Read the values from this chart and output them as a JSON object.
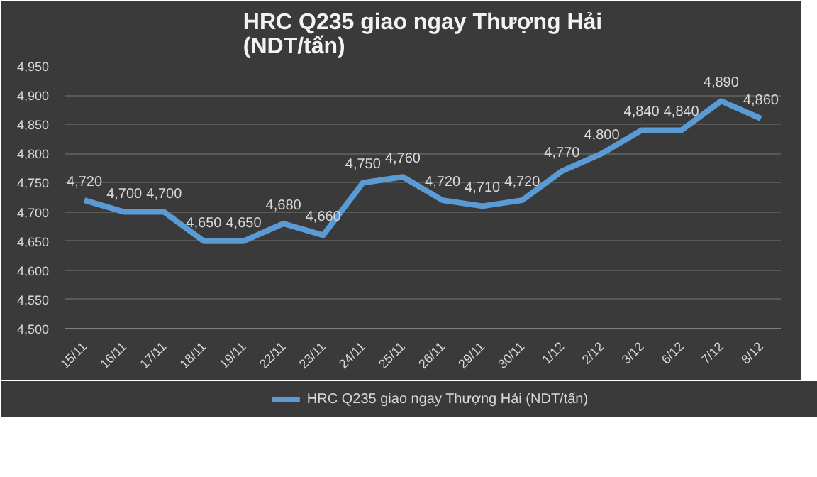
{
  "chart_data": {
    "type": "line",
    "title": "HRC Q235 giao ngay Thượng Hải\n(NDT/tấn)",
    "categories": [
      "15/11",
      "16/11",
      "17/11",
      "18/11",
      "19/11",
      "22/11",
      "23/11",
      "24/11",
      "25/11",
      "26/11",
      "29/11",
      "30/11",
      "1/12",
      "2/12",
      "3/12",
      "6/12",
      "7/12",
      "8/12"
    ],
    "series": [
      {
        "name": "HRC Q235 giao ngay Thượng Hải (NDT/tấn)",
        "color": "#5b9bd5",
        "values": [
          4720,
          4700,
          4700,
          4650,
          4650,
          4680,
          4660,
          4750,
          4760,
          4720,
          4710,
          4720,
          4770,
          4800,
          4840,
          4840,
          4890,
          4860
        ],
        "value_labels": [
          "4,720",
          "4,700",
          "4,700",
          "4,650",
          "4,650",
          "4,680",
          "4,660",
          "4,750",
          "4,760",
          "4,720",
          "4,710",
          "4,720",
          "4,770",
          "4,800",
          "4,840",
          "4,840",
          "4,890",
          "4,860"
        ]
      }
    ],
    "ylim": [
      4500,
      4950
    ],
    "yticks": [
      {
        "value": 4500,
        "label": "4,500"
      },
      {
        "value": 4550,
        "label": "4,550"
      },
      {
        "value": 4600,
        "label": "4,600"
      },
      {
        "value": 4650,
        "label": "4,650"
      },
      {
        "value": 4700,
        "label": "4,700"
      },
      {
        "value": 4750,
        "label": "4,750"
      },
      {
        "value": 4800,
        "label": "4,800"
      },
      {
        "value": 4850,
        "label": "4,850"
      },
      {
        "value": 4900,
        "label": "4,900"
      },
      {
        "value": 4950,
        "label": "4,950"
      }
    ],
    "grid": "y",
    "legend": "bottom",
    "marker": "none",
    "line_style": "solid"
  }
}
